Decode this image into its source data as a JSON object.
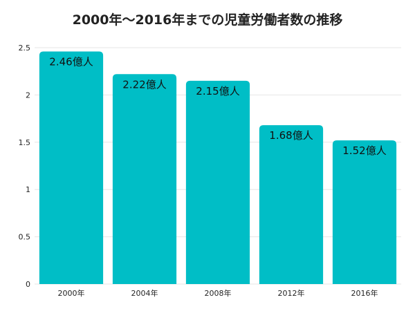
{
  "chart_data": {
    "type": "bar",
    "title": "2000年〜2016年までの児童労働者数の推移",
    "categories": [
      "2000年",
      "2004年",
      "2008年",
      "2012年",
      "2016年"
    ],
    "values": [
      2.46,
      2.22,
      2.15,
      1.68,
      1.52
    ],
    "data_labels": [
      "2.46億人",
      "2.22億人",
      "2.15億人",
      "1.68億人",
      "1.52億人"
    ],
    "y_ticks": [
      "0",
      "0.5",
      "1",
      "1.5",
      "2",
      "2.5"
    ],
    "ylim": [
      0,
      2.5
    ],
    "xlabel": "",
    "ylabel": "",
    "grid": true,
    "legend": "none",
    "bar_color": "#00bec6",
    "grid_color": "#e6e6e6"
  }
}
